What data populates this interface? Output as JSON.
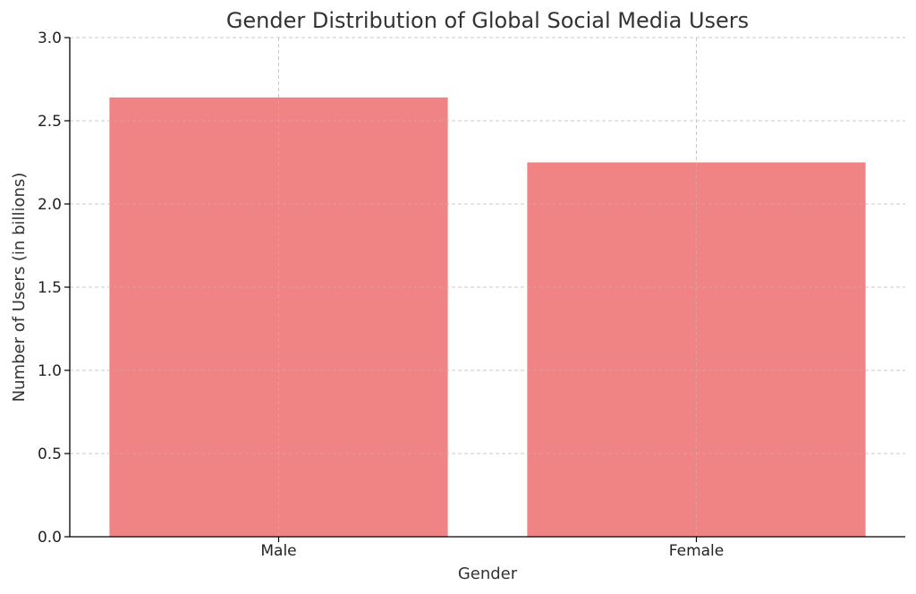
{
  "chart_data": {
    "type": "bar",
    "title": "Gender Distribution of Global Social Media Users",
    "xlabel": "Gender",
    "ylabel": "Number of Users (in billions)",
    "categories": [
      "Male",
      "Female"
    ],
    "values": [
      2.64,
      2.25
    ],
    "ylim": [
      0,
      3.0
    ],
    "yticks": [
      "0.0",
      "0.5",
      "1.0",
      "1.5",
      "2.0",
      "2.5",
      "3.0"
    ],
    "grid": true,
    "colors": {
      "bar": "#f08080",
      "grid": "#c8c8c8",
      "axis": "#000000"
    }
  }
}
